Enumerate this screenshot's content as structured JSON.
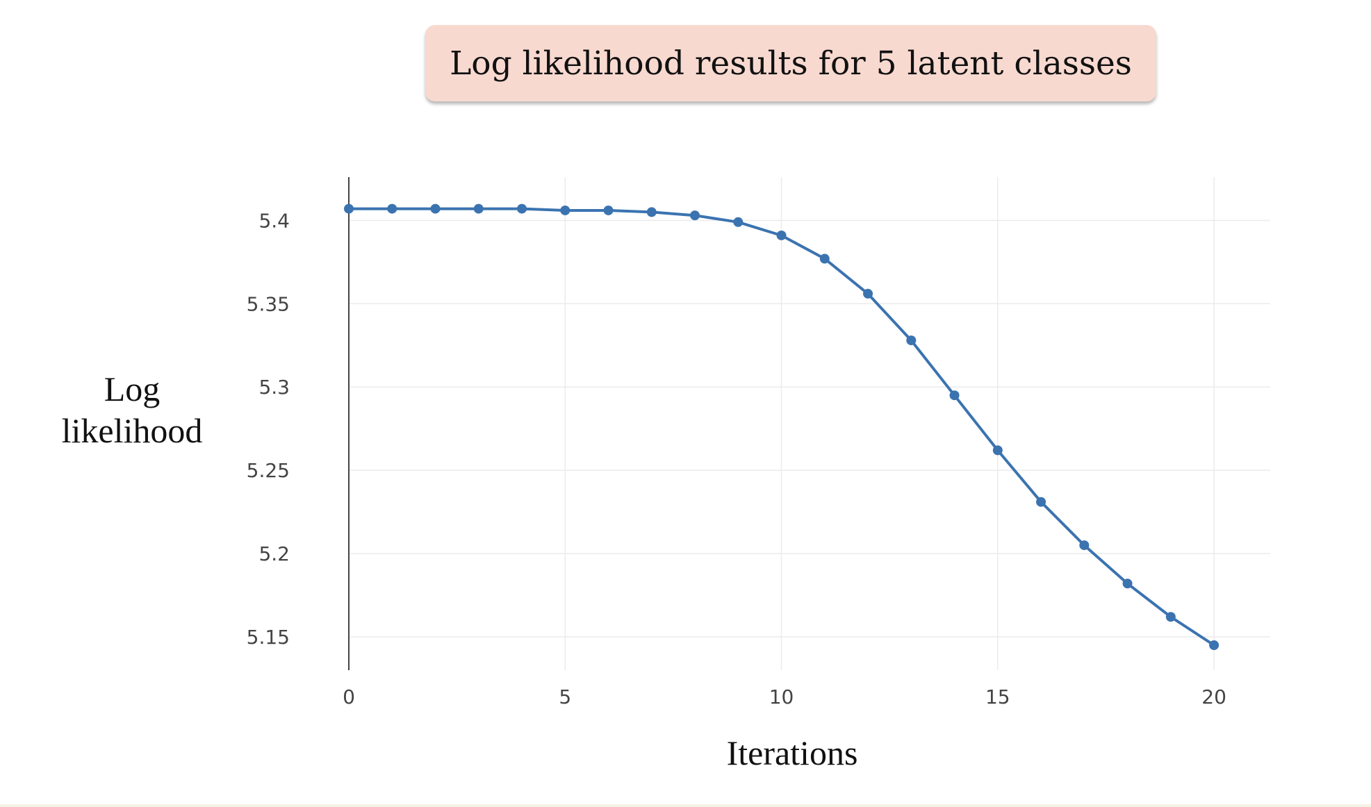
{
  "chart_data": {
    "type": "line",
    "title": "Log likelihood results for 5 latent classes",
    "xlabel": "Iterations",
    "ylabel": [
      "Log",
      "likelihood"
    ],
    "xlim": [
      0,
      21.3
    ],
    "ylim": [
      5.13,
      5.426
    ],
    "x_ticks": [
      0,
      5,
      10,
      15,
      20
    ],
    "x_tick_labels": [
      "0",
      "5",
      "10",
      "15",
      "20"
    ],
    "y_ticks": [
      5.15,
      5.2,
      5.25,
      5.3,
      5.35,
      5.4
    ],
    "y_tick_labels": [
      "5.15",
      "5.2",
      "5.25",
      "5.3",
      "5.35",
      "5.4"
    ],
    "grid": true,
    "series": [
      {
        "name": "Log likelihood",
        "color": "#3b73b0",
        "x": [
          0,
          1,
          2,
          3,
          4,
          5,
          6,
          7,
          8,
          9,
          10,
          11,
          12,
          13,
          14,
          15,
          16,
          17,
          18,
          19,
          20
        ],
        "values": [
          5.407,
          5.407,
          5.407,
          5.407,
          5.407,
          5.406,
          5.406,
          5.405,
          5.403,
          5.399,
          5.391,
          5.377,
          5.356,
          5.328,
          5.295,
          5.262,
          5.231,
          5.205,
          5.182,
          5.162,
          5.145
        ]
      }
    ]
  },
  "colors": {
    "title_bg": "#f8d9d0",
    "grid": "#ebebeb",
    "axis": "#444444",
    "line": "#3b73b0"
  }
}
